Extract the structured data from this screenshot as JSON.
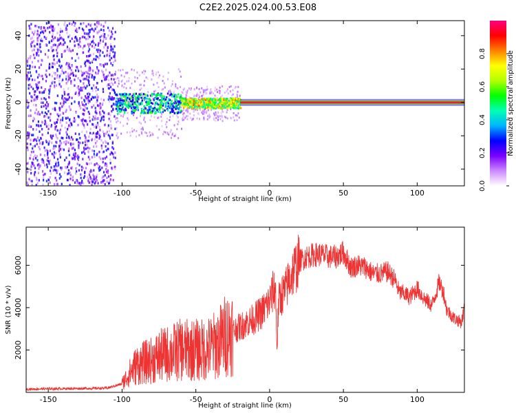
{
  "title": "C2E2.2025.024.00.53.E08",
  "chart_data": [
    {
      "type": "heatmap",
      "xlabel": "Height of straight line (km)",
      "ylabel": "Frequency (Hz)",
      "xlim": [
        -165,
        132
      ],
      "ylim": [
        -50,
        49
      ],
      "xticks": [
        -150,
        -100,
        -50,
        0,
        50,
        100
      ],
      "yticks": [
        -40,
        -20,
        0,
        20,
        40
      ],
      "colorbar": {
        "label": "Normalized spectral amplitude",
        "range": [
          0.0,
          1.0
        ],
        "ticks": [
          0.0,
          0.2,
          0.4,
          0.6,
          0.8
        ],
        "stops": [
          "#ffffff",
          "#cc88ff",
          "#7a00ff",
          "#0000ff",
          "#00b4ff",
          "#00ffb4",
          "#00ff00",
          "#b4ff00",
          "#ffff00",
          "#ff8000",
          "#ff0000",
          "#ff0080"
        ]
      },
      "regions": [
        {
          "x": [
            -165,
            -105
          ],
          "freq_spread": 49,
          "amplitude": [
            0.05,
            0.3
          ],
          "note": "broadband noise"
        },
        {
          "x": [
            -105,
            -60
          ],
          "freq_spread": 6,
          "amplitude": [
            0.2,
            0.6
          ]
        },
        {
          "x": [
            -60,
            -20
          ],
          "freq_spread": 3,
          "amplitude": [
            0.4,
            0.85
          ]
        },
        {
          "x": [
            -20,
            132
          ],
          "freq_spread": 1,
          "amplitude": [
            0.9,
            1.0
          ],
          "note": "narrow line near 0 Hz"
        }
      ]
    },
    {
      "type": "line",
      "xlabel": "Height of straight line (km)",
      "ylabel": "SNR (10 * v/v)",
      "xlim": [
        -165,
        132
      ],
      "ylim": [
        0,
        7800
      ],
      "xticks": [
        -150,
        -100,
        -50,
        0,
        50,
        100
      ],
      "yticks": [
        2000,
        4000,
        6000
      ],
      "color": "#ee3333",
      "x": [
        -165,
        -150,
        -130,
        -110,
        -100,
        -95,
        -90,
        -85,
        -80,
        -75,
        -70,
        -65,
        -60,
        -55,
        -50,
        -45,
        -40,
        -35,
        -30,
        -25,
        -20,
        -15,
        -10,
        -5,
        0,
        2,
        4,
        5,
        6,
        8,
        10,
        15,
        20,
        25,
        30,
        35,
        40,
        45,
        50,
        55,
        60,
        65,
        70,
        75,
        80,
        85,
        88,
        90,
        95,
        100,
        105,
        110,
        115,
        118,
        120,
        125,
        130,
        132
      ],
      "y": [
        150,
        170,
        180,
        200,
        400,
        900,
        1300,
        1400,
        1500,
        1700,
        1800,
        1900,
        2000,
        2000,
        2000,
        2000,
        2100,
        2300,
        2700,
        2900,
        3100,
        3300,
        3500,
        3800,
        4300,
        4700,
        5000,
        2000,
        4200,
        4600,
        4700,
        5600,
        6200,
        6400,
        6500,
        6500,
        6400,
        6400,
        6600,
        5900,
        6000,
        5900,
        5600,
        5600,
        5700,
        5300,
        4700,
        4700,
        4500,
        4900,
        4400,
        4100,
        5200,
        4700,
        3900,
        3500,
        3300,
        4000
      ]
    }
  ]
}
